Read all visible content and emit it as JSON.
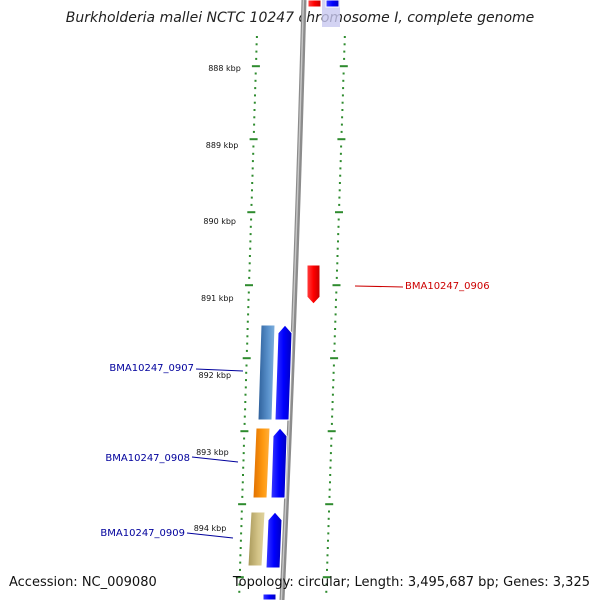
{
  "title": "Burkholderia mallei NCTC 10247 chromosome I, complete genome",
  "footer": {
    "accession": "Accession: NC_009080",
    "topology": "Topology: circular; Length: 3,495,687 bp; Genes: 3,325"
  },
  "colors": {
    "backbone": "#888888",
    "ticks": "#2e8b2e",
    "forward_gene": "#0000ff",
    "reverse_gene": "#ff0000",
    "label_blue": "#00009c",
    "label_red": "#cc0000",
    "cog_steelblue": "#4a7fb8",
    "cog_orange": "#ff8c00",
    "cog_khaki": "#c8b878"
  },
  "scale": {
    "ticks": [
      {
        "label": "888 kbp"
      },
      {
        "label": "889 kbp"
      },
      {
        "label": "890 kbp"
      },
      {
        "label": "891 kbp"
      },
      {
        "label": "892 kbp"
      },
      {
        "label": "893 kbp"
      },
      {
        "label": "894 kbp"
      }
    ]
  },
  "genes": [
    {
      "name": "BMA10247_0906",
      "strand": "reverse",
      "cog_color": "#ff0000"
    },
    {
      "name": "BMA10247_0907",
      "strand": "forward",
      "cog_color": "#4a7fb8"
    },
    {
      "name": "BMA10247_0908",
      "strand": "forward",
      "cog_color": "#ff8c00"
    },
    {
      "name": "BMA10247_0909",
      "strand": "forward",
      "cog_color": "#c8b878"
    }
  ]
}
